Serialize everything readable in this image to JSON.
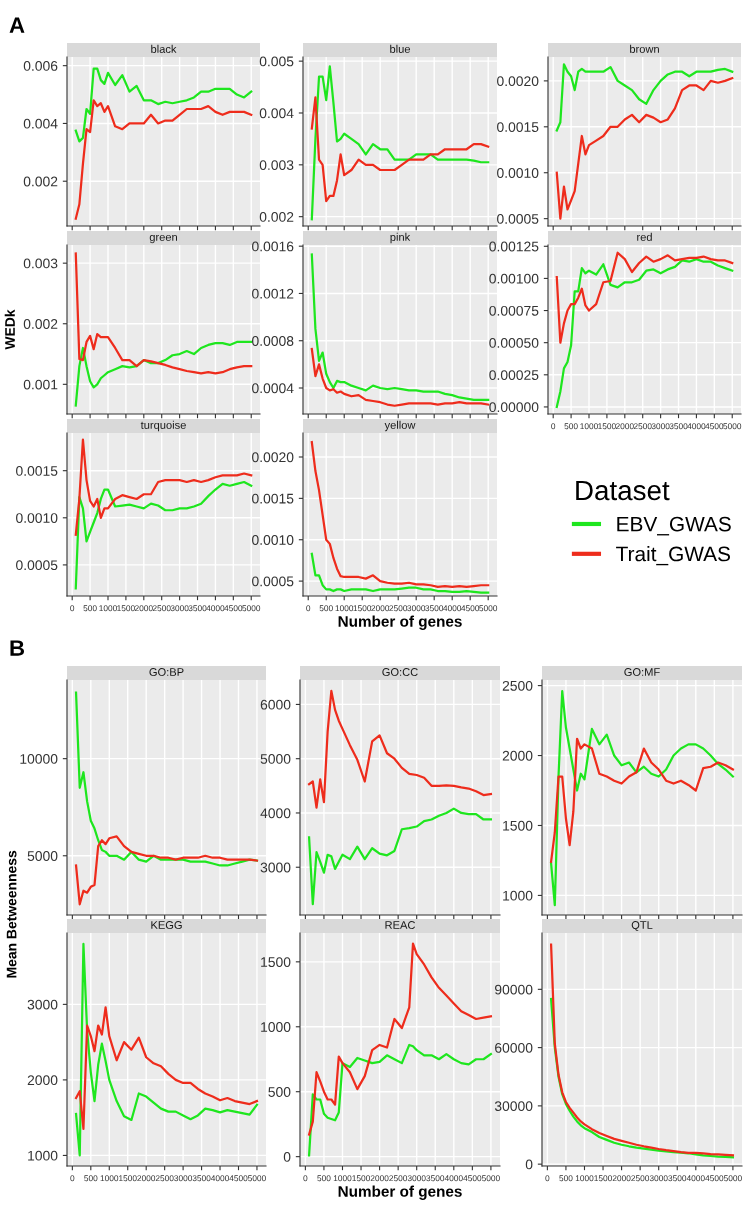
{
  "chart_data": [
    {
      "type": "line",
      "title": "black",
      "annotations": [
        "A"
      ],
      "tick_labels": "y",
      "grid": true,
      "xlim": [
        -145,
        5245
      ],
      "xticks": [
        0,
        500,
        1000,
        1500,
        2000,
        2500,
        3000,
        3500,
        4000,
        4500,
        5000
      ],
      "ylim": [
        0.00045,
        0.0063
      ],
      "yticks": [
        0.002,
        0.004,
        0.006
      ],
      "x": [
        100,
        200,
        300,
        400,
        500,
        600,
        700,
        800,
        900,
        1000,
        1200,
        1400,
        1600,
        1800,
        2000,
        2200,
        2400,
        2600,
        2800,
        3000,
        3200,
        3400,
        3600,
        3800,
        4000,
        4200,
        4400,
        4600,
        4800,
        5000
      ],
      "series": [
        {
          "color": "#1ee61e",
          "values": [
            0.00375,
            0.00338,
            0.0035,
            0.0045,
            0.00433,
            0.0059,
            0.0059,
            0.0055,
            0.00537,
            0.00575,
            0.00533,
            0.00567,
            0.0051,
            0.0053,
            0.0048,
            0.0048,
            0.00467,
            0.00475,
            0.0047,
            0.00475,
            0.0048,
            0.0049,
            0.0051,
            0.0051,
            0.0052,
            0.0052,
            0.0052,
            0.005,
            0.0049,
            0.0051
          ]
        },
        {
          "color": "#ee2c1c",
          "values": [
            0.0007,
            0.0012,
            0.0026,
            0.0038,
            0.0037,
            0.0048,
            0.0046,
            0.0047,
            0.0044,
            0.0046,
            0.0039,
            0.0038,
            0.004,
            0.004,
            0.004,
            0.0043,
            0.004,
            0.0041,
            0.0041,
            0.0043,
            0.0045,
            0.0045,
            0.0045,
            0.0046,
            0.0044,
            0.0043,
            0.0044,
            0.0044,
            0.0044,
            0.0043
          ]
        }
      ]
    },
    {
      "type": "line",
      "title": "blue",
      "tick_labels": "y",
      "grid": true,
      "xlim": [
        -145,
        5245
      ],
      "xticks": [
        0,
        500,
        1000,
        1500,
        2000,
        2500,
        3000,
        3500,
        4000,
        4500,
        5000
      ],
      "ylim": [
        0.00182,
        0.00508
      ],
      "yticks": [
        0.002,
        0.003,
        0.004,
        0.005
      ],
      "x": [
        100,
        200,
        300,
        400,
        500,
        600,
        700,
        800,
        900,
        1000,
        1200,
        1400,
        1600,
        1800,
        2000,
        2200,
        2400,
        2600,
        2800,
        3000,
        3200,
        3400,
        3600,
        3800,
        4000,
        4200,
        4400,
        4600,
        4800,
        5000
      ],
      "series": [
        {
          "color": "#1ee61e",
          "values": [
            0.00195,
            0.0035,
            0.0047,
            0.0047,
            0.00425,
            0.0049,
            0.0042,
            0.00345,
            0.0035,
            0.0036,
            0.0035,
            0.0034,
            0.0032,
            0.0034,
            0.0033,
            0.0033,
            0.0031,
            0.0031,
            0.0031,
            0.0032,
            0.0032,
            0.0032,
            0.0031,
            0.0031,
            0.0031,
            0.0031,
            0.0031,
            0.00308,
            0.00305,
            0.00305
          ]
        },
        {
          "color": "#ee2c1c",
          "values": [
            0.0037,
            0.0043,
            0.0031,
            0.003,
            0.0023,
            0.0024,
            0.0024,
            0.0027,
            0.0032,
            0.0028,
            0.0029,
            0.0031,
            0.003,
            0.003,
            0.0029,
            0.0029,
            0.0029,
            0.003,
            0.0031,
            0.0031,
            0.0031,
            0.0032,
            0.0032,
            0.0033,
            0.0033,
            0.0033,
            0.0033,
            0.0034,
            0.0034,
            0.00335
          ]
        }
      ]
    },
    {
      "type": "line",
      "title": "brown",
      "tick_labels": "y",
      "grid": true,
      "xlim": [
        -145,
        5245
      ],
      "xticks": [
        0,
        500,
        1000,
        1500,
        2000,
        2500,
        3000,
        3500,
        4000,
        4500,
        5000
      ],
      "ylim": [
        0.00042,
        0.00226
      ],
      "yticks": [
        {
          "value": 0.0005,
          "label": "0.0005"
        },
        {
          "value": 0.001,
          "label": "0.0010"
        },
        {
          "value": 0.0015,
          "label": "0.0015"
        },
        {
          "value": 0.002,
          "label": "0.0020"
        }
      ],
      "x": [
        100,
        200,
        300,
        400,
        500,
        600,
        700,
        800,
        900,
        1000,
        1200,
        1400,
        1600,
        1800,
        2000,
        2200,
        2400,
        2600,
        2800,
        3000,
        3200,
        3400,
        3600,
        3800,
        4000,
        4200,
        4400,
        4600,
        4800,
        5000
      ],
      "series": [
        {
          "color": "#1ee61e",
          "values": [
            0.00146,
            0.00155,
            0.00218,
            0.0021,
            0.00205,
            0.0019,
            0.0021,
            0.00213,
            0.0021,
            0.0021,
            0.0021,
            0.0021,
            0.00215,
            0.002,
            0.00195,
            0.0019,
            0.0018,
            0.00175,
            0.0019,
            0.002,
            0.00207,
            0.0021,
            0.0021,
            0.00205,
            0.0021,
            0.0021,
            0.0021,
            0.00212,
            0.00213,
            0.0021
          ]
        },
        {
          "color": "#ee2c1c",
          "values": [
            0.001,
            0.0005,
            0.00085,
            0.0006,
            0.0007,
            0.0008,
            0.0011,
            0.0014,
            0.0012,
            0.0013,
            0.00135,
            0.0014,
            0.0015,
            0.0015,
            0.00158,
            0.00163,
            0.00155,
            0.00163,
            0.0016,
            0.00155,
            0.00158,
            0.0017,
            0.0019,
            0.00195,
            0.00195,
            0.0019,
            0.002,
            0.00198,
            0.002,
            0.00203
          ]
        }
      ]
    },
    {
      "type": "line",
      "title": "green",
      "ylabel": "WEDk",
      "tick_labels": "y",
      "grid": true,
      "xlim": [
        -145,
        5245
      ],
      "xticks": [
        0,
        500,
        1000,
        1500,
        2000,
        2500,
        3000,
        3500,
        4000,
        4500,
        5000
      ],
      "ylim": [
        0.00051,
        0.0033
      ],
      "yticks": [
        0.001,
        0.002,
        0.003
      ],
      "x": [
        100,
        200,
        300,
        400,
        500,
        600,
        700,
        800,
        900,
        1000,
        1200,
        1400,
        1600,
        1800,
        2000,
        2200,
        2400,
        2600,
        2800,
        3000,
        3200,
        3400,
        3600,
        3800,
        4000,
        4200,
        4400,
        4600,
        4800,
        5000
      ],
      "series": [
        {
          "color": "#1ee61e",
          "values": [
            0.00065,
            0.0013,
            0.0016,
            0.0013,
            0.00105,
            0.00095,
            0.001,
            0.0011,
            0.00115,
            0.0012,
            0.00125,
            0.0013,
            0.00128,
            0.0013,
            0.0014,
            0.00135,
            0.00135,
            0.0014,
            0.00148,
            0.0015,
            0.00155,
            0.0015,
            0.0016,
            0.00165,
            0.00168,
            0.00168,
            0.00165,
            0.0017,
            0.0017,
            0.0017
          ]
        },
        {
          "color": "#ee2c1c",
          "values": [
            0.00316,
            0.00142,
            0.0014,
            0.0017,
            0.0018,
            0.00158,
            0.00183,
            0.00178,
            0.00178,
            0.00178,
            0.0016,
            0.0014,
            0.0014,
            0.0013,
            0.0014,
            0.00138,
            0.00135,
            0.00132,
            0.00128,
            0.00125,
            0.00122,
            0.0012,
            0.00118,
            0.0012,
            0.00118,
            0.0012,
            0.00125,
            0.00128,
            0.0013,
            0.0013
          ]
        }
      ]
    },
    {
      "type": "line",
      "title": "pink",
      "tick_labels": "y",
      "grid": true,
      "xlim": [
        -145,
        5245
      ],
      "xticks": [
        0,
        500,
        1000,
        1500,
        2000,
        2500,
        3000,
        3500,
        4000,
        4500,
        5000
      ],
      "ylim": [
        0.00018,
        0.00161
      ],
      "yticks": [
        0.0004,
        0.0008,
        0.0012,
        0.0016
      ],
      "x": [
        100,
        200,
        300,
        400,
        500,
        600,
        700,
        800,
        900,
        1000,
        1200,
        1400,
        1600,
        1800,
        2000,
        2200,
        2400,
        2600,
        2800,
        3000,
        3200,
        3400,
        3600,
        3800,
        4000,
        4200,
        4400,
        4600,
        4800,
        5000
      ],
      "series": [
        {
          "color": "#1ee61e",
          "values": [
            0.00153,
            0.0009,
            0.00063,
            0.0007,
            0.00052,
            0.00045,
            0.0004,
            0.00046,
            0.00045,
            0.00045,
            0.00042,
            0.0004,
            0.00038,
            0.00042,
            0.0004,
            0.00039,
            0.0004,
            0.00039,
            0.00038,
            0.00038,
            0.00037,
            0.00037,
            0.00037,
            0.00035,
            0.00034,
            0.00032,
            0.00031,
            0.0003,
            0.0003,
            0.0003
          ]
        },
        {
          "color": "#ee2c1c",
          "values": [
            0.00073,
            0.0005,
            0.0006,
            0.00048,
            0.0004,
            0.00038,
            0.00039,
            0.00036,
            0.00037,
            0.00035,
            0.00033,
            0.00034,
            0.0003,
            0.00029,
            0.00028,
            0.00026,
            0.00025,
            0.00026,
            0.00027,
            0.00027,
            0.00027,
            0.00027,
            0.00026,
            0.00027,
            0.00027,
            0.00028,
            0.00027,
            0.00027,
            0.00027,
            0.00026
          ]
        }
      ]
    },
    {
      "type": "line",
      "title": "red",
      "grid": true,
      "xlim": [
        -145,
        5245
      ],
      "xticks": [
        0,
        500,
        1000,
        1500,
        2000,
        2500,
        3000,
        3500,
        4000,
        4500,
        5000
      ],
      "ylim": [
        -5.5e-05,
        0.00126
      ],
      "yticks": [
        {
          "value": 0,
          "label": "0.00000"
        },
        {
          "value": 0.00025,
          "label": "0.00025"
        },
        {
          "value": 0.0005,
          "label": "0.00050"
        },
        {
          "value": 0.00075,
          "label": "0.00075"
        },
        {
          "value": 0.001,
          "label": "0.00100"
        },
        {
          "value": 0.00125,
          "label": "0.00125"
        }
      ],
      "x": [
        100,
        200,
        300,
        400,
        500,
        600,
        700,
        800,
        900,
        1000,
        1200,
        1400,
        1600,
        1800,
        2000,
        2200,
        2400,
        2600,
        2800,
        3000,
        3200,
        3400,
        3600,
        3800,
        4000,
        4200,
        4400,
        4600,
        4800,
        5000
      ],
      "series": [
        {
          "color": "#1ee61e",
          "values": [
            0,
            0.00012,
            0.0003,
            0.00035,
            0.00048,
            0.0009,
            0.0009,
            0.00108,
            0.00104,
            0.00106,
            0.00103,
            0.00111,
            0.00095,
            0.00093,
            0.00097,
            0.00097,
            0.00099,
            0.00106,
            0.00107,
            0.00104,
            0.00107,
            0.00109,
            0.00114,
            0.00113,
            0.00115,
            0.00113,
            0.00113,
            0.0011,
            0.00108,
            0.00106
          ]
        },
        {
          "color": "#ee2c1c",
          "values": [
            0.00101,
            0.0005,
            0.00065,
            0.00075,
            0.0008,
            0.0008,
            0.00085,
            0.00092,
            0.00079,
            0.00075,
            0.0008,
            0.00097,
            0.00098,
            0.0012,
            0.00115,
            0.00105,
            0.00112,
            0.00117,
            0.00113,
            0.00115,
            0.00118,
            0.00114,
            0.00115,
            0.00116,
            0.00116,
            0.00117,
            0.00115,
            0.00114,
            0.00114,
            0.00112
          ]
        }
      ]
    },
    {
      "type": "line",
      "title": "turquoise",
      "grid": true,
      "xlim": [
        -145,
        5245
      ],
      "xticks": [
        0,
        500,
        1000,
        1500,
        2000,
        2500,
        3000,
        3500,
        4000,
        4500,
        5000
      ],
      "ylim": [
        0.00017,
        0.0019
      ],
      "yticks": [
        {
          "value": 0.0005,
          "label": "0.0005"
        },
        {
          "value": 0.001,
          "label": "0.0010"
        },
        {
          "value": 0.0015,
          "label": "0.0015"
        }
      ],
      "x": [
        100,
        200,
        300,
        400,
        500,
        600,
        700,
        800,
        900,
        1000,
        1200,
        1400,
        1600,
        1800,
        2000,
        2200,
        2400,
        2600,
        2800,
        3000,
        3200,
        3400,
        3600,
        3800,
        4000,
        4200,
        4400,
        4600,
        4800,
        5000
      ],
      "series": [
        {
          "color": "#1ee61e",
          "values": [
            0.00025,
            0.00122,
            0.0011,
            0.00075,
            0.00085,
            0.00095,
            0.00105,
            0.0012,
            0.0013,
            0.0013,
            0.00112,
            0.00113,
            0.00114,
            0.00112,
            0.0011,
            0.00115,
            0.00113,
            0.00108,
            0.00108,
            0.0011,
            0.0011,
            0.00112,
            0.00115,
            0.00123,
            0.0013,
            0.00136,
            0.00134,
            0.00136,
            0.00138,
            0.00134
          ]
        },
        {
          "color": "#ee2c1c",
          "values": [
            0.00082,
            0.0012,
            0.00183,
            0.0014,
            0.00118,
            0.00112,
            0.0012,
            0.001,
            0.0011,
            0.0011,
            0.0012,
            0.00124,
            0.00122,
            0.0012,
            0.00125,
            0.00125,
            0.00138,
            0.0014,
            0.0014,
            0.0014,
            0.00138,
            0.0014,
            0.00138,
            0.0014,
            0.00143,
            0.00145,
            0.00145,
            0.00145,
            0.00147,
            0.00145
          ]
        }
      ]
    },
    {
      "type": "line",
      "title": "yellow",
      "xlabel": "Number of genes",
      "legend": "right",
      "legend_title": "Dataset",
      "grid": true,
      "xlim": [
        -145,
        5245
      ],
      "xticks": [
        0,
        500,
        1000,
        1500,
        2000,
        2500,
        3000,
        3500,
        4000,
        4500,
        5000
      ],
      "ylim": [
        0.00032,
        0.00229
      ],
      "yticks": [
        {
          "value": 0.0005,
          "label": "0.0005"
        },
        {
          "value": 0.001,
          "label": "0.0010"
        },
        {
          "value": 0.0015,
          "label": "0.0015"
        },
        {
          "value": 0.002,
          "label": "0.0020"
        }
      ],
      "x": [
        100,
        200,
        300,
        400,
        500,
        600,
        700,
        800,
        900,
        1000,
        1200,
        1400,
        1600,
        1800,
        2000,
        2200,
        2400,
        2600,
        2800,
        3000,
        3200,
        3400,
        3600,
        3800,
        4000,
        4200,
        4400,
        4600,
        4800,
        5000
      ],
      "series": [
        {
          "name": "EBV_GWAS",
          "color": "#1ee61e",
          "values": [
            0.00083,
            0.00057,
            0.00057,
            0.00045,
            0.0004,
            0.0004,
            0.00038,
            0.0004,
            0.0004,
            0.00038,
            0.0004,
            0.0004,
            0.0004,
            0.00038,
            0.0004,
            0.0004,
            0.0004,
            0.00041,
            0.00042,
            0.00042,
            0.0004,
            0.0004,
            0.00038,
            0.00038,
            0.00037,
            0.00037,
            0.00038,
            0.00037,
            0.00036,
            0.00036
          ]
        },
        {
          "name": "Trait_GWAS",
          "color": "#ee2c1c",
          "values": [
            0.00218,
            0.00183,
            0.0016,
            0.0013,
            0.001,
            0.00095,
            0.00078,
            0.00065,
            0.00056,
            0.00055,
            0.00055,
            0.00055,
            0.00053,
            0.00057,
            0.0005,
            0.00048,
            0.00047,
            0.00047,
            0.00048,
            0.00046,
            0.00046,
            0.00045,
            0.00043,
            0.00044,
            0.00043,
            0.00044,
            0.00043,
            0.00044,
            0.00045,
            0.00045
          ]
        }
      ]
    },
    {
      "type": "line",
      "title": "GO:BP",
      "annotations": [
        "B"
      ],
      "tick_labels": "y",
      "grid": true,
      "xlim": [
        -145,
        5245
      ],
      "xticks": [
        0,
        500,
        1000,
        1500,
        2000,
        2500,
        3000,
        3500,
        4000,
        4500,
        5000
      ],
      "ylim": [
        1950,
        14050
      ],
      "yticks": [
        5000,
        10000
      ],
      "x": [
        100,
        200,
        300,
        400,
        500,
        600,
        700,
        800,
        900,
        1000,
        1200,
        1400,
        1600,
        1800,
        2000,
        2200,
        2400,
        2600,
        2800,
        3000,
        3200,
        3400,
        3600,
        3800,
        4000,
        4200,
        4400,
        4600,
        4800,
        5000
      ],
      "series": [
        {
          "color": "#1ee61e",
          "values": [
            13400,
            8500,
            9300,
            7800,
            6800,
            6400,
            5800,
            5300,
            5200,
            5000,
            5000,
            4800,
            5200,
            4800,
            4700,
            5000,
            4800,
            4800,
            4800,
            4800,
            4700,
            4700,
            4700,
            4600,
            4500,
            4500,
            4600,
            4700,
            4800,
            4750
          ]
        },
        {
          "color": "#ee2c1c",
          "values": [
            4500,
            2500,
            3200,
            3100,
            3400,
            3500,
            5500,
            5800,
            5600,
            5900,
            6000,
            5500,
            5200,
            5100,
            5000,
            5000,
            4900,
            4900,
            4800,
            4900,
            4900,
            4900,
            5000,
            4900,
            4900,
            4800,
            4800,
            4800,
            4800,
            4750
          ]
        }
      ]
    },
    {
      "type": "line",
      "title": "GO:CC",
      "tick_labels": "y",
      "grid": true,
      "xlim": [
        -145,
        5245
      ],
      "xticks": [
        0,
        500,
        1000,
        1500,
        2000,
        2500,
        3000,
        3500,
        4000,
        4500,
        5000
      ],
      "ylim": [
        2120,
        6450
      ],
      "yticks": [
        3000,
        4000,
        5000,
        6000
      ],
      "x": [
        100,
        200,
        300,
        400,
        500,
        600,
        700,
        800,
        900,
        1000,
        1200,
        1400,
        1600,
        1800,
        2000,
        2200,
        2400,
        2600,
        2800,
        3000,
        3200,
        3400,
        3600,
        3800,
        4000,
        4200,
        4400,
        4600,
        4800,
        5000
      ],
      "series": [
        {
          "color": "#1ee61e",
          "values": [
            3550,
            2320,
            3280,
            3100,
            2900,
            3230,
            3200,
            2970,
            3100,
            3230,
            3150,
            3380,
            3150,
            3350,
            3250,
            3220,
            3300,
            3700,
            3720,
            3750,
            3850,
            3880,
            3950,
            4000,
            4080,
            4000,
            3980,
            3980,
            3880,
            3880
          ]
        },
        {
          "color": "#ee2c1c",
          "values": [
            4530,
            4580,
            4100,
            4620,
            4200,
            5500,
            6250,
            5900,
            5700,
            5550,
            5250,
            4980,
            4580,
            5320,
            5430,
            5100,
            5000,
            4830,
            4720,
            4700,
            4650,
            4500,
            4500,
            4510,
            4500,
            4470,
            4450,
            4400,
            4330,
            4350
          ]
        }
      ]
    },
    {
      "type": "line",
      "title": "GO:MF",
      "tick_labels": "y",
      "grid": true,
      "xlim": [
        -145,
        5245
      ],
      "xticks": [
        0,
        500,
        1000,
        1500,
        2000,
        2500,
        3000,
        3500,
        4000,
        4500,
        5000
      ],
      "ylim": [
        860,
        2540
      ],
      "yticks": [
        1000,
        1500,
        2000,
        2500
      ],
      "x": [
        100,
        200,
        300,
        400,
        500,
        600,
        700,
        800,
        900,
        1000,
        1200,
        1400,
        1600,
        1800,
        2000,
        2200,
        2400,
        2600,
        2800,
        3000,
        3200,
        3400,
        3600,
        3800,
        4000,
        4200,
        4400,
        4600,
        4800,
        5000
      ],
      "series": [
        {
          "color": "#1ee61e",
          "values": [
            1230,
            930,
            1850,
            2460,
            2200,
            2050,
            1900,
            1750,
            1870,
            1830,
            2190,
            2080,
            2150,
            2000,
            1930,
            1950,
            1880,
            1920,
            1870,
            1850,
            1900,
            2000,
            2050,
            2080,
            2080,
            2050,
            2000,
            1940,
            1900,
            1850
          ]
        },
        {
          "color": "#ee2c1c",
          "values": [
            1240,
            1450,
            1850,
            1850,
            1550,
            1360,
            1600,
            2120,
            2050,
            2080,
            2050,
            1870,
            1850,
            1820,
            1800,
            1850,
            1880,
            2050,
            1950,
            1900,
            1820,
            1800,
            1820,
            1790,
            1750,
            1910,
            1920,
            1950,
            1930,
            1900
          ]
        }
      ]
    },
    {
      "type": "line",
      "title": "KEGG",
      "ylabel": "Mean Betweenness",
      "grid": true,
      "xlim": [
        -145,
        5245
      ],
      "xticks": [
        0,
        500,
        1000,
        1500,
        2000,
        2500,
        3000,
        3500,
        4000,
        4500,
        5000
      ],
      "ylim": [
        860,
        3945
      ],
      "yticks": [
        1000,
        2000,
        3000
      ],
      "x": [
        100,
        200,
        300,
        400,
        500,
        600,
        700,
        800,
        900,
        1000,
        1200,
        1400,
        1600,
        1800,
        2000,
        2200,
        2400,
        2600,
        2800,
        3000,
        3200,
        3400,
        3600,
        3800,
        4000,
        4200,
        4400,
        4600,
        4800,
        5000
      ],
      "series": [
        {
          "color": "#1ee61e",
          "values": [
            1550,
            1000,
            3800,
            2650,
            2100,
            1720,
            2200,
            2480,
            2250,
            2000,
            1720,
            1520,
            1470,
            1820,
            1780,
            1700,
            1620,
            1580,
            1580,
            1530,
            1480,
            1530,
            1620,
            1600,
            1570,
            1600,
            1580,
            1560,
            1540,
            1670
          ]
        },
        {
          "color": "#ee2c1c",
          "values": [
            1760,
            1850,
            1350,
            2720,
            2580,
            2380,
            2720,
            2600,
            2960,
            2580,
            2260,
            2500,
            2400,
            2560,
            2300,
            2220,
            2180,
            2080,
            2000,
            1960,
            1960,
            1880,
            1820,
            1780,
            1730,
            1760,
            1720,
            1700,
            1680,
            1720
          ]
        }
      ]
    },
    {
      "type": "line",
      "title": "REAC",
      "xlabel": "Number of genes",
      "grid": true,
      "xlim": [
        -145,
        5245
      ],
      "xticks": [
        0,
        500,
        1000,
        1500,
        2000,
        2500,
        3000,
        3500,
        4000,
        4500,
        5000
      ],
      "ylim": [
        -72,
        1722
      ],
      "yticks": [
        0,
        500,
        1000,
        1500
      ],
      "x": [
        100,
        200,
        300,
        400,
        500,
        600,
        700,
        800,
        900,
        1000,
        1200,
        1400,
        1600,
        1800,
        2000,
        2200,
        2400,
        2600,
        2800,
        2900,
        3000,
        3200,
        3400,
        3600,
        3800,
        4000,
        4200,
        4400,
        4600,
        4800,
        5000
      ],
      "series": [
        {
          "color": "#1ee61e",
          "values": [
            10,
            480,
            440,
            440,
            330,
            300,
            290,
            280,
            340,
            720,
            690,
            760,
            740,
            720,
            730,
            780,
            750,
            720,
            860,
            850,
            820,
            780,
            780,
            750,
            790,
            750,
            720,
            710,
            750,
            750,
            790
          ]
        },
        {
          "color": "#ee2c1c",
          "values": [
            170,
            270,
            650,
            580,
            500,
            440,
            440,
            400,
            770,
            720,
            650,
            520,
            620,
            820,
            860,
            840,
            1060,
            990,
            1150,
            1640,
            1560,
            1480,
            1380,
            1300,
            1240,
            1180,
            1120,
            1090,
            1060,
            1070,
            1080
          ]
        }
      ]
    },
    {
      "type": "line",
      "title": "QTL",
      "grid": true,
      "xlim": [
        -145,
        5245
      ],
      "xticks": [
        0,
        500,
        1000,
        1500,
        2000,
        2500,
        3000,
        3500,
        4000,
        4500,
        5000
      ],
      "ylim": [
        -950,
        119000
      ],
      "yticks": [
        0,
        30000,
        60000,
        90000
      ],
      "x": [
        100,
        200,
        300,
        400,
        500,
        600,
        700,
        800,
        900,
        1000,
        1200,
        1400,
        1600,
        1800,
        2000,
        2200,
        2400,
        2600,
        2800,
        3000,
        3200,
        3400,
        3600,
        3800,
        4000,
        4200,
        4400,
        4600,
        4800,
        5000
      ],
      "series": [
        {
          "color": "#1ee61e",
          "values": [
            85000,
            60000,
            45000,
            36000,
            31000,
            27500,
            24500,
            22000,
            20000,
            18500,
            16500,
            14000,
            12500,
            11000,
            10000,
            9200,
            8500,
            8000,
            7500,
            7000,
            6600,
            6200,
            5900,
            5600,
            5000,
            4500,
            4200,
            3900,
            3700,
            3500
          ]
        },
        {
          "color": "#ee2c1c",
          "values": [
            113000,
            62000,
            46000,
            37000,
            32000,
            29000,
            26500,
            24000,
            22000,
            20500,
            18000,
            16000,
            14500,
            13000,
            12000,
            11000,
            10000,
            9200,
            8500,
            7800,
            7200,
            6700,
            6200,
            5800,
            5800,
            5500,
            5200,
            5000,
            4800,
            4600
          ]
        }
      ]
    }
  ]
}
